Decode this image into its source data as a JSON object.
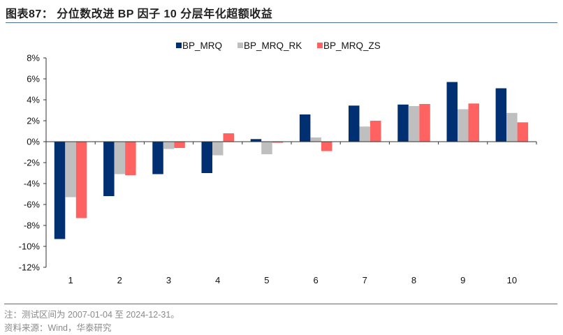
{
  "header": {
    "title": "图表87：  分位数改进 BP 因子 10 分层年化超额收益"
  },
  "footer": {
    "note": "注：测试区间为 2007-01-04 至 2024-12-31。",
    "source": "资料来源：Wind，华泰研究"
  },
  "chart_data": {
    "type": "bar",
    "title": "分位数改进 BP 因子 10 分层年化超额收益",
    "xlabel": "",
    "ylabel": "",
    "categories": [
      "1",
      "2",
      "3",
      "4",
      "5",
      "6",
      "7",
      "8",
      "9",
      "10"
    ],
    "series": [
      {
        "name": "BP_MRQ",
        "color": "#002f72",
        "values": [
          -9.3,
          -5.2,
          -3.1,
          -3.0,
          0.25,
          2.6,
          3.45,
          3.55,
          5.7,
          5.1
        ]
      },
      {
        "name": "BP_MRQ_RK",
        "color": "#bfbfbf",
        "values": [
          -5.3,
          -3.1,
          -0.7,
          -1.3,
          -1.2,
          0.4,
          1.45,
          3.4,
          3.1,
          2.75
        ]
      },
      {
        "name": "BP_MRQ_ZS",
        "color": "#ff6361",
        "values": [
          -7.3,
          -3.2,
          -0.6,
          0.8,
          -0.1,
          -0.9,
          2.0,
          3.6,
          3.65,
          1.85
        ]
      }
    ],
    "ylim": [
      -12,
      8
    ],
    "yticks": [
      8,
      6,
      4,
      2,
      0,
      -2,
      -4,
      -6,
      -8,
      -10,
      -12
    ],
    "ytick_format": "percent",
    "grid": false,
    "legend": "top-center"
  }
}
